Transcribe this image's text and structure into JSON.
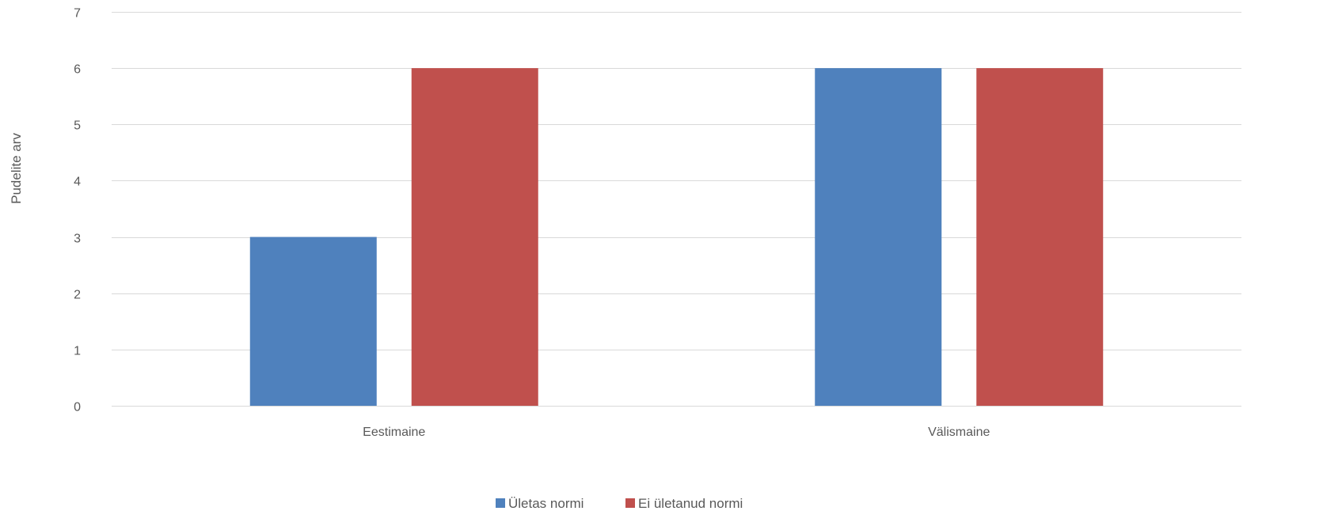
{
  "chart_data": {
    "type": "bar",
    "categories": [
      "Eestimaine",
      "Välismaine"
    ],
    "series": [
      {
        "name": "Ületas normi",
        "values": [
          3,
          6
        ],
        "color": "#4F81BD"
      },
      {
        "name": "Ei ületanud normi",
        "values": [
          6,
          6
        ],
        "color": "#C0504D"
      }
    ],
    "title": "",
    "xlabel": "",
    "ylabel": "Pudelite arv",
    "ylim": [
      0,
      7
    ],
    "yticks": [
      0,
      1,
      2,
      3,
      4,
      5,
      6,
      7
    ],
    "grid": true,
    "legend_position": "bottom",
    "gridline_color": "#D9D9D9"
  }
}
